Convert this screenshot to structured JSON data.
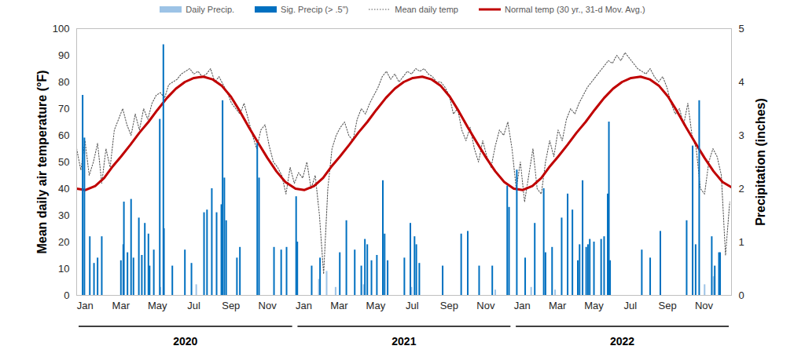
{
  "chart_data": {
    "type": "line",
    "y_label": "Mean daily air temperature (°F)",
    "y2_label": "Precipitation (inches)",
    "xlim": [
      0,
      1095
    ],
    "xticks": [
      {
        "value": 14,
        "label": "Jan"
      },
      {
        "value": 74,
        "label": "Mar"
      },
      {
        "value": 135,
        "label": "May"
      },
      {
        "value": 196,
        "label": "Jul"
      },
      {
        "value": 258,
        "label": "Sep"
      },
      {
        "value": 319,
        "label": "Nov"
      },
      {
        "value": 380,
        "label": "Jan"
      },
      {
        "value": 439,
        "label": "Mar"
      },
      {
        "value": 500,
        "label": "May"
      },
      {
        "value": 561,
        "label": "Jul"
      },
      {
        "value": 623,
        "label": "Sep"
      },
      {
        "value": 684,
        "label": "Nov"
      },
      {
        "value": 745,
        "label": "Jan"
      },
      {
        "value": 804,
        "label": "Mar"
      },
      {
        "value": 865,
        "label": "May"
      },
      {
        "value": 926,
        "label": "Jul"
      },
      {
        "value": 988,
        "label": "Sep"
      },
      {
        "value": 1049,
        "label": "Nov"
      }
    ],
    "ylim": [
      0,
      100
    ],
    "yticks": [
      0,
      10,
      20,
      30,
      40,
      50,
      60,
      70,
      80,
      90,
      100
    ],
    "y2lim": [
      0,
      5
    ],
    "y2ticks": [
      0,
      1,
      2,
      3,
      4,
      5
    ],
    "grid": false,
    "legend": "top",
    "groups": [
      {
        "label": "2020",
        "from": 0,
        "to": 365
      },
      {
        "label": "2021",
        "from": 366,
        "to": 730
      },
      {
        "label": "2022",
        "from": 731,
        "to": 1095
      }
    ],
    "series": [
      {
        "name": "Daily Precip.",
        "type": "bar",
        "axis": "y2",
        "color": "#9dc3e6",
        "x": [
          140,
          200,
          405,
          418,
          433,
          480,
          560,
          700,
          760,
          800,
          1050,
          1065
        ],
        "values": [
          0.15,
          0.2,
          0.3,
          0.45,
          0.15,
          0.2,
          0.15,
          0.1,
          0.15,
          0.1,
          0.2,
          0.35
        ]
      },
      {
        "name": "Sig. Precip (> .5\")",
        "type": "bar",
        "axis": "y2",
        "color": "#0070c0",
        "x": [
          10,
          13,
          22,
          29,
          35,
          42,
          74,
          78,
          79,
          85,
          91,
          95,
          104,
          109,
          114,
          120,
          122,
          129,
          139,
          145,
          146,
          160,
          181,
          192,
          213,
          218,
          226,
          234,
          242,
          244,
          247,
          250,
          268,
          273,
          302,
          305,
          330,
          342,
          351,
          367,
          369,
          393,
          407,
          440,
          451,
          465,
          476,
          482,
          486,
          493,
          502,
          512,
          515,
          520,
          548,
          558,
          565,
          568,
          573,
          612,
          643,
          654,
          673,
          695,
          720,
          723,
          736,
          750,
          766,
          781,
          784,
          795,
          811,
          821,
          829,
          838,
          841,
          846,
          852,
          855,
          858,
          865,
          877,
          882,
          888,
          890,
          892,
          945,
          959,
          976,
          1020,
          1030,
          1035,
          1041,
          1062,
          1067,
          1074,
          1076
        ],
        "values": [
          3.75,
          2.95,
          1.1,
          0.6,
          0.7,
          1.1,
          0.65,
          0.95,
          1.75,
          0.8,
          1.8,
          0.7,
          1.45,
          0.75,
          1.35,
          1.15,
          0.55,
          0.85,
          3.3,
          4.7,
          1.25,
          0.55,
          0.85,
          0.6,
          1.55,
          1.6,
          2.0,
          1.55,
          1.7,
          3.65,
          2.2,
          1.4,
          0.7,
          0.9,
          2.85,
          2.2,
          0.9,
          0.85,
          0.9,
          1.85,
          1.0,
          0.55,
          0.7,
          0.8,
          1.4,
          0.85,
          0.55,
          1.05,
          0.95,
          0.65,
          0.75,
          2.15,
          1.15,
          0.65,
          0.7,
          1.35,
          1.1,
          0.95,
          0.6,
          0.55,
          1.15,
          1.2,
          0.55,
          0.55,
          2.05,
          1.65,
          2.35,
          0.7,
          1.35,
          2.0,
          0.8,
          0.9,
          1.45,
          1.9,
          1.6,
          0.65,
          0.95,
          2.15,
          0.9,
          0.95,
          1.05,
          1.0,
          1.05,
          1.1,
          1.9,
          3.25,
          0.65,
          0.85,
          0.7,
          1.2,
          1.4,
          2.8,
          0.95,
          3.65,
          1.1,
          0.55,
          0.8,
          0.8
        ]
      },
      {
        "name": "Mean daily temp",
        "type": "line",
        "color": "#595959",
        "line_style": "dotted",
        "x": [
          0,
          7,
          14,
          21,
          28,
          35,
          42,
          49,
          56,
          63,
          70,
          77,
          84,
          91,
          98,
          105,
          112,
          119,
          126,
          133,
          140,
          147,
          154,
          161,
          168,
          175,
          182,
          189,
          196,
          203,
          210,
          217,
          224,
          231,
          238,
          245,
          252,
          259,
          266,
          273,
          280,
          287,
          294,
          301,
          308,
          315,
          322,
          329,
          336,
          343,
          350,
          357,
          364,
          371,
          378,
          385,
          392,
          399,
          406,
          413,
          420,
          427,
          434,
          441,
          448,
          455,
          462,
          469,
          476,
          483,
          490,
          497,
          504,
          511,
          518,
          525,
          532,
          539,
          546,
          553,
          560,
          567,
          574,
          581,
          588,
          595,
          602,
          609,
          616,
          623,
          630,
          637,
          644,
          651,
          658,
          665,
          672,
          679,
          686,
          693,
          700,
          707,
          714,
          721,
          728,
          735,
          742,
          749,
          756,
          763,
          770,
          777,
          784,
          791,
          798,
          805,
          812,
          819,
          826,
          833,
          840,
          847,
          854,
          861,
          868,
          875,
          882,
          889,
          896,
          903,
          910,
          917,
          924,
          931,
          938,
          945,
          952,
          959,
          966,
          973,
          980,
          987,
          994,
          1001,
          1008,
          1015,
          1022,
          1029,
          1036,
          1043,
          1050,
          1057,
          1064,
          1071,
          1078,
          1085,
          1092
        ],
        "values": [
          55,
          47,
          58,
          45,
          50,
          57,
          42,
          55,
          48,
          62,
          66,
          70,
          64,
          60,
          68,
          62,
          70,
          66,
          72,
          75,
          76,
          74,
          79,
          80,
          81,
          83,
          84,
          85,
          83,
          84,
          82,
          83,
          85,
          80,
          82,
          79,
          76,
          72,
          70,
          68,
          72,
          66,
          60,
          55,
          62,
          64,
          56,
          50,
          48,
          45,
          38,
          48,
          42,
          46,
          44,
          50,
          40,
          45,
          30,
          8,
          40,
          55,
          60,
          63,
          65,
          60,
          58,
          66,
          70,
          68,
          72,
          75,
          78,
          82,
          84,
          81,
          83,
          80,
          82,
          84,
          83,
          85,
          84,
          85,
          83,
          82,
          80,
          80,
          78,
          75,
          68,
          70,
          62,
          58,
          63,
          55,
          50,
          58,
          52,
          48,
          56,
          62,
          60,
          65,
          55,
          40,
          50,
          35,
          45,
          55,
          40,
          38,
          50,
          58,
          52,
          62,
          58,
          66,
          70,
          68,
          72,
          75,
          78,
          80,
          82,
          84,
          86,
          88,
          87,
          90,
          88,
          91,
          89,
          87,
          85,
          84,
          83,
          85,
          82,
          80,
          82,
          78,
          72,
          68,
          70,
          64,
          72,
          60,
          55,
          40,
          38,
          50,
          55,
          52,
          45,
          15,
          35
        ]
      },
      {
        "name": "Normal temp (30 yr., 31-d Mov. Avg.)",
        "type": "line",
        "color": "#c00000",
        "line_style": "solid",
        "x": [
          0,
          15,
          31,
          46,
          59,
          74,
          90,
          105,
          120,
          135,
          151,
          166,
          181,
          196,
          212,
          227,
          243,
          258,
          273,
          288,
          304,
          319,
          334,
          349,
          366,
          381,
          397,
          412,
          425,
          440,
          456,
          471,
          486,
          501,
          517,
          532,
          547,
          562,
          578,
          593,
          609,
          624,
          639,
          654,
          670,
          685,
          700,
          715,
          731,
          746,
          762,
          777,
          790,
          805,
          821,
          836,
          851,
          866,
          882,
          897,
          912,
          927,
          943,
          958,
          974,
          989,
          1004,
          1019,
          1035,
          1050,
          1065,
          1080,
          1095
        ],
        "values": [
          40,
          39.5,
          41,
          44,
          48,
          52,
          56.5,
          61,
          65,
          69.5,
          74,
          77.5,
          80,
          81.5,
          82,
          81,
          78.5,
          74.5,
          69,
          63,
          57,
          51.5,
          46.5,
          42.5,
          40,
          39.5,
          41,
          44,
          48,
          52,
          56.5,
          61,
          65,
          69.5,
          74,
          77.5,
          80,
          81.5,
          82,
          81,
          78.5,
          74.5,
          69,
          63,
          57,
          51.5,
          46.5,
          42.5,
          40,
          39.5,
          41,
          44,
          48,
          52,
          56.5,
          61,
          65,
          69.5,
          74,
          77.5,
          80,
          81.5,
          82,
          81,
          78.5,
          74.5,
          69,
          63,
          57,
          51.5,
          46.5,
          42.5,
          40.5
        ]
      }
    ]
  }
}
